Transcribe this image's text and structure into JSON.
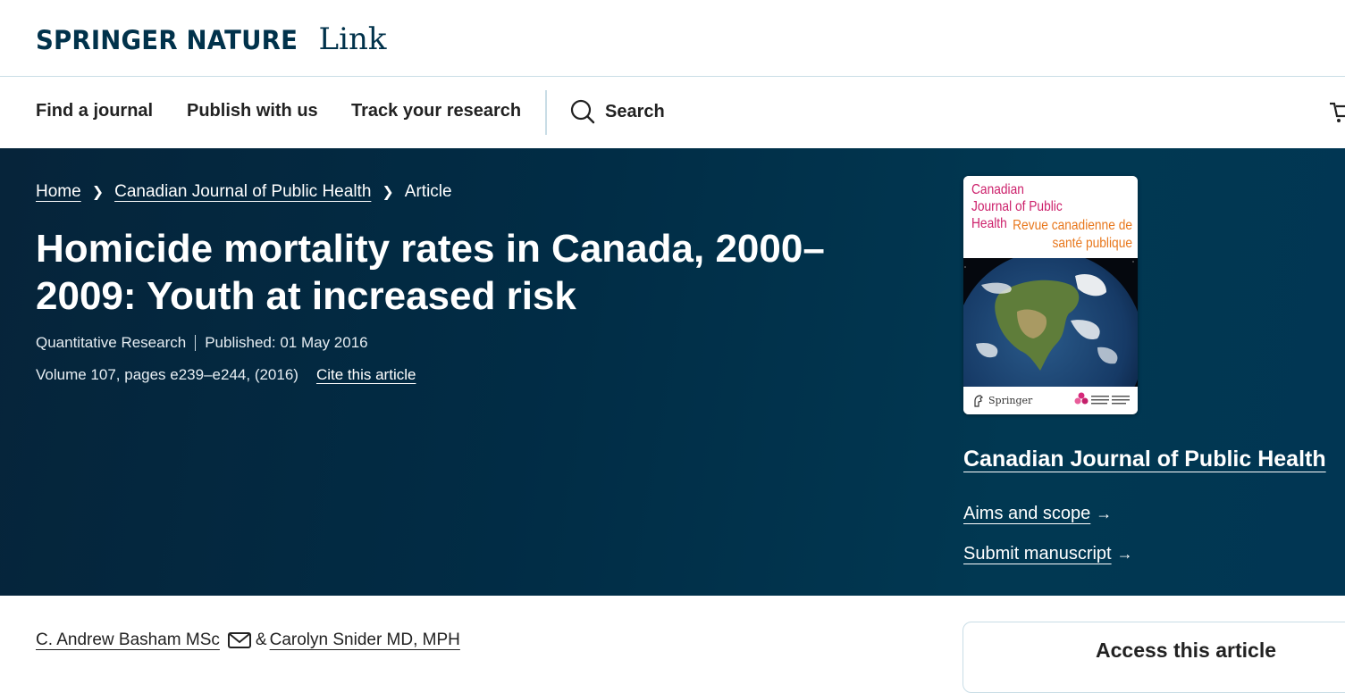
{
  "brand": {
    "logo_text": "SPRINGER NATURE",
    "product": "Link"
  },
  "nav": {
    "items": [
      "Find a journal",
      "Publish with us",
      "Track your research"
    ],
    "search_label": "Search"
  },
  "breadcrumb": [
    "Home",
    "Canadian Journal of Public Health",
    "Article"
  ],
  "article": {
    "title": "Homicide mortality rates in Canada, 2000–2009: Youth at increased risk",
    "article_type": "Quantitative Research",
    "published": "Published: 01 May 2016",
    "volume_info": "Volume 107, pages e239–e244, (2016)",
    "cite_label": "Cite this article"
  },
  "cover": {
    "title_en": "Canadian Journal of Public Health",
    "title_fr": "Revue canadienne de santé publique",
    "publisher": "Springer"
  },
  "journal": {
    "name": "Canadian Journal of Public Health",
    "aims_label": "Aims and scope",
    "submit_label": "Submit manuscript",
    "arrow": "→"
  },
  "authors": {
    "first": "C. Andrew Basham MSc",
    "separator": "&",
    "second": "Carolyn Snider MD, MPH"
  },
  "access": {
    "title": "Access this article"
  },
  "colors": {
    "brand_navy": "#01324b",
    "hero_bg": "#012c45",
    "cover_pink": "#cc1f6a",
    "cover_orange": "#e8771c"
  },
  "icons": [
    "search-icon",
    "cart-icon",
    "chevron-right-icon",
    "arrow-right-icon",
    "mail-icon",
    "springer-horse-icon"
  ]
}
